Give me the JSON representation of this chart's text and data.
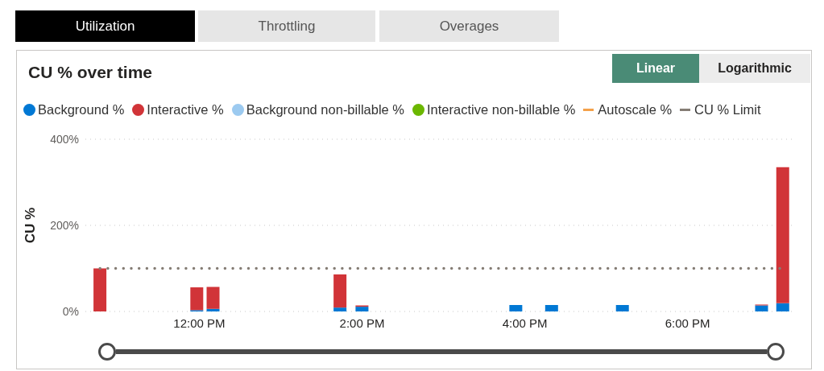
{
  "chart_data": {
    "type": "bar",
    "title": "CU % over time",
    "ylabel": "CU %",
    "annotations": [
      "Utilization",
      "Throttling",
      "Overages",
      "Linear",
      "Logarithmic"
    ],
    "x": [
      10.78,
      11.97,
      12.17,
      13.73,
      14.0,
      15.89,
      16.33,
      17.2,
      18.91,
      19.17
    ],
    "stacked": true,
    "series": [
      {
        "name": "Background %",
        "color": "#0078d4",
        "values": [
          null,
          3,
          6,
          9,
          11,
          15,
          15,
          15,
          14,
          19
        ]
      },
      {
        "name": "Interactive %",
        "color": "#d13438",
        "values": [
          100,
          53,
          51,
          77,
          3,
          null,
          null,
          null,
          2,
          316
        ]
      },
      {
        "name": "Background non-billable %",
        "color": "#9ccaf0",
        "values": [
          null,
          null,
          null,
          null,
          null,
          null,
          null,
          null,
          null,
          null
        ]
      },
      {
        "name": "Interactive non-billable %",
        "color": "#6bb700",
        "values": [
          null,
          null,
          null,
          null,
          null,
          null,
          null,
          null,
          null,
          null
        ]
      },
      {
        "name": "Autoscale %",
        "type": "line",
        "color": "#f4a14a",
        "values": [
          null,
          null,
          null,
          null,
          null,
          null,
          null,
          null,
          null,
          null
        ]
      },
      {
        "name": "CU % Limit",
        "type": "line",
        "color": "#857d75",
        "line_style": "dotted",
        "values": [
          100,
          100,
          100,
          100,
          100,
          100,
          100,
          100,
          100,
          100
        ]
      }
    ],
    "xlim": [
      10.6,
      19.3
    ],
    "xticks": [
      {
        "value": 12,
        "label": "12:00 PM"
      },
      {
        "value": 14,
        "label": "2:00 PM"
      },
      {
        "value": 16,
        "label": "4:00 PM"
      },
      {
        "value": 18,
        "label": "6:00 PM"
      }
    ],
    "ylim": [
      0,
      400
    ],
    "yticks": [
      {
        "value": 0,
        "label": "0%"
      },
      {
        "value": 200,
        "label": "200%"
      },
      {
        "value": 400,
        "label": "400%"
      }
    ],
    "grid": "y",
    "legend": "top left",
    "marker": "none"
  }
}
